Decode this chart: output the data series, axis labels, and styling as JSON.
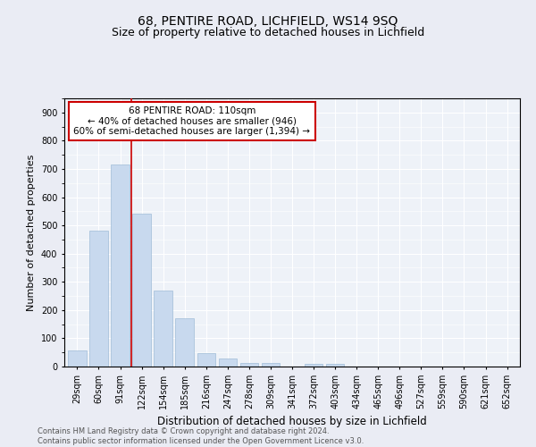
{
  "title": "68, PENTIRE ROAD, LICHFIELD, WS14 9SQ",
  "subtitle": "Size of property relative to detached houses in Lichfield",
  "xlabel": "Distribution of detached houses by size in Lichfield",
  "ylabel": "Number of detached properties",
  "categories": [
    "29sqm",
    "60sqm",
    "91sqm",
    "122sqm",
    "154sqm",
    "185sqm",
    "216sqm",
    "247sqm",
    "278sqm",
    "309sqm",
    "341sqm",
    "372sqm",
    "403sqm",
    "434sqm",
    "465sqm",
    "496sqm",
    "527sqm",
    "559sqm",
    "590sqm",
    "621sqm",
    "652sqm"
  ],
  "values": [
    57,
    481,
    716,
    541,
    270,
    172,
    48,
    30,
    13,
    12,
    0,
    8,
    8,
    0,
    0,
    0,
    0,
    0,
    0,
    0,
    0
  ],
  "bar_color": "#c8d9ee",
  "bar_edge_color": "#a0bcd8",
  "vline_x_idx": 2,
  "vline_color": "#cc0000",
  "annotation_text": "68 PENTIRE ROAD: 110sqm\n← 40% of detached houses are smaller (946)\n60% of semi-detached houses are larger (1,394) →",
  "annotation_box_facecolor": "#ffffff",
  "annotation_box_edgecolor": "#cc0000",
  "bg_color": "#eaecf4",
  "plot_bg_color": "#eef2f8",
  "grid_color": "#ffffff",
  "footer": "Contains HM Land Registry data © Crown copyright and database right 2024.\nContains public sector information licensed under the Open Government Licence v3.0.",
  "ylim": [
    0,
    950
  ],
  "yticks": [
    0,
    100,
    200,
    300,
    400,
    500,
    600,
    700,
    800,
    900
  ],
  "title_fontsize": 10,
  "subtitle_fontsize": 9,
  "xlabel_fontsize": 8.5,
  "ylabel_fontsize": 8,
  "tick_fontsize": 7,
  "footer_fontsize": 6,
  "annot_fontsize": 7.5
}
